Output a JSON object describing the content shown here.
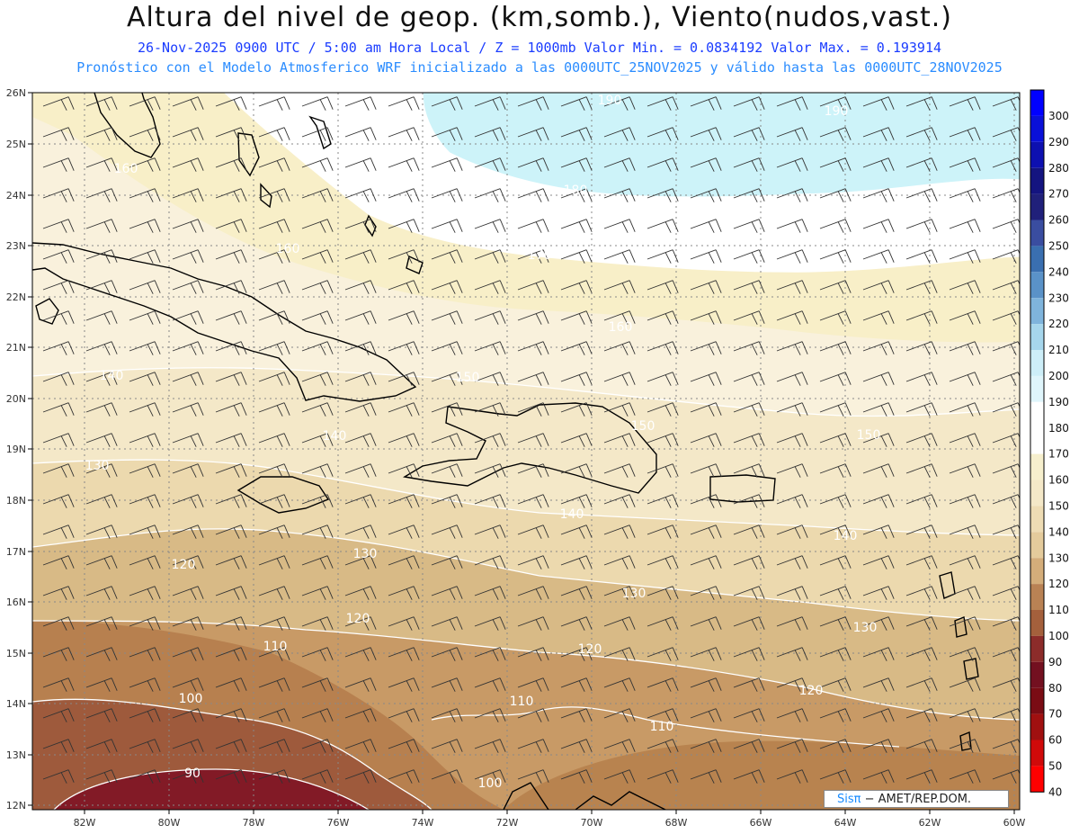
{
  "header": {
    "title": "Altura del nivel de geop. (km,somb.), Viento(nudos,vast.)",
    "subtitle": "26-Nov-2025  0900 UTC / 5:00 am Hora Local / Z = 1000mb  Valor Min. = 0.0834192  Valor Max. = 0.193914",
    "info": "Pronóstico con el Modelo Atmosferico WRF inicializado a las 0000UTC_25NOV2025 y válido hasta las  0000UTC_28NOV2025"
  },
  "map": {
    "lon_labels": [
      "82W",
      "80W",
      "78W",
      "76W",
      "74W",
      "72W",
      "70W",
      "68W",
      "66W",
      "64W",
      "62W",
      "60W"
    ],
    "lat_labels": [
      "26N",
      "25N",
      "24N",
      "23N",
      "22N",
      "21N",
      "20N",
      "19N",
      "18N",
      "17N",
      "16N",
      "15N",
      "14N",
      "13N",
      "12N"
    ],
    "contour_labels": [
      {
        "text": "190"
      },
      {
        "text": "190"
      },
      {
        "text": "180"
      },
      {
        "text": "170"
      },
      {
        "text": "160"
      },
      {
        "text": "160"
      },
      {
        "text": "160"
      },
      {
        "text": "150"
      },
      {
        "text": "150"
      },
      {
        "text": "150"
      },
      {
        "text": "140"
      },
      {
        "text": "140"
      },
      {
        "text": "140"
      },
      {
        "text": "140"
      },
      {
        "text": "130"
      },
      {
        "text": "130"
      },
      {
        "text": "130"
      },
      {
        "text": "130"
      },
      {
        "text": "120"
      },
      {
        "text": "120"
      },
      {
        "text": "120"
      },
      {
        "text": "120"
      },
      {
        "text": "110"
      },
      {
        "text": "110"
      },
      {
        "text": "110"
      },
      {
        "text": "100"
      },
      {
        "text": "100"
      },
      {
        "text": "90"
      }
    ]
  },
  "colorbar": {
    "levels": [
      "300",
      "290",
      "280",
      "270",
      "260",
      "250",
      "240",
      "230",
      "220",
      "210",
      "200",
      "190",
      "180",
      "170",
      "160",
      "150",
      "140",
      "130",
      "120",
      "110",
      "100",
      "90",
      "80",
      "70",
      "60",
      "50",
      "40"
    ],
    "colors": {
      "blue_top": "#0000ff",
      "navy": "#10106e",
      "steel": "#3a6fb0",
      "light_blue": "#7fb4dc",
      "pale_blue": "#cde9f5",
      "white": "#ffffff",
      "cream": "#f6efcd",
      "tan": "#ddbe8e",
      "brown": "#a8714a",
      "maroon": "#7a1420",
      "red": "#ff0000"
    }
  },
  "credit": {
    "brand": "Sisπ",
    "text": "−     AMET/REP.DOM."
  }
}
